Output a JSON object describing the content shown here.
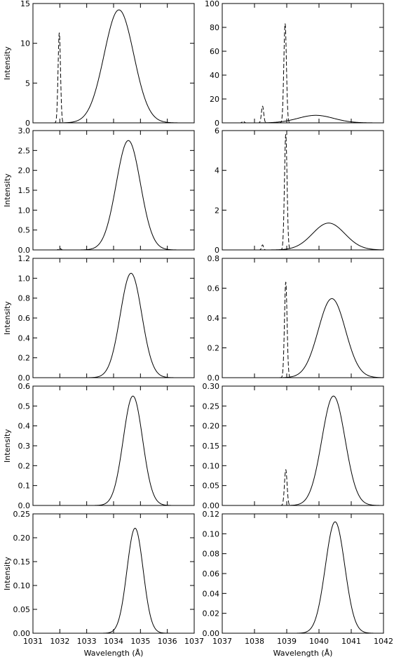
{
  "chart_data": [
    {
      "type": "line",
      "row": 0,
      "col": 0,
      "xlim": [
        1031,
        1037
      ],
      "ylim": [
        0,
        15
      ],
      "yticks": [
        0,
        5,
        10,
        15
      ],
      "yfmt": 0,
      "ylabel": "Intensity",
      "xlabel": "",
      "xtick_labels": false,
      "series": [
        {
          "style": "solid",
          "kind": "gaussian",
          "center": 1034.2,
          "amp": 14.2,
          "sigma": 0.55
        },
        {
          "style": "dashed",
          "kind": "gaussian",
          "center": 1031.98,
          "amp": 11.3,
          "sigma": 0.045
        }
      ]
    },
    {
      "type": "line",
      "row": 0,
      "col": 1,
      "xlim": [
        1037,
        1042
      ],
      "ylim": [
        0,
        100
      ],
      "yticks": [
        0,
        20,
        40,
        60,
        80,
        100
      ],
      "yfmt": 0,
      "ylabel": "",
      "xlabel": "",
      "xtick_labels": false,
      "series": [
        {
          "style": "solid",
          "kind": "gaussian",
          "center": 1039.9,
          "amp": 6.3,
          "sigma": 0.55
        },
        {
          "style": "dashed",
          "kind": "gaussian",
          "center": 1038.95,
          "amp": 83,
          "sigma": 0.04
        },
        {
          "style": "dashed",
          "kind": "gaussian",
          "center": 1038.25,
          "amp": 14,
          "sigma": 0.035
        },
        {
          "style": "dashed",
          "kind": "gaussian",
          "center": 1037.65,
          "amp": 1.5,
          "sigma": 0.03
        }
      ]
    },
    {
      "type": "line",
      "row": 1,
      "col": 0,
      "xlim": [
        1031,
        1037
      ],
      "ylim": [
        0,
        3.0
      ],
      "yticks": [
        0,
        0.5,
        1.0,
        1.5,
        2.0,
        2.5,
        3.0
      ],
      "yfmt": 1,
      "ylabel": "Intensity",
      "xlabel": "",
      "xtick_labels": false,
      "series": [
        {
          "style": "solid",
          "kind": "gaussian",
          "center": 1034.55,
          "amp": 2.75,
          "sigma": 0.45
        },
        {
          "style": "dashed",
          "kind": "gaussian",
          "center": 1032.0,
          "amp": 0.04,
          "sigma": 0.04
        }
      ]
    },
    {
      "type": "line",
      "row": 1,
      "col": 1,
      "xlim": [
        1037,
        1042
      ],
      "ylim": [
        0,
        6
      ],
      "yticks": [
        0,
        2,
        4,
        6
      ],
      "yfmt": 0,
      "ylabel": "",
      "xlabel": "",
      "xtick_labels": false,
      "series": [
        {
          "style": "solid",
          "kind": "gaussian",
          "center": 1040.3,
          "amp": 1.35,
          "sigma": 0.5
        },
        {
          "style": "dashed",
          "kind": "gaussian",
          "center": 1038.97,
          "amp": 5.8,
          "sigma": 0.04
        },
        {
          "style": "dashed",
          "kind": "gaussian",
          "center": 1038.25,
          "amp": 0.25,
          "sigma": 0.03
        }
      ]
    },
    {
      "type": "line",
      "row": 2,
      "col": 0,
      "xlim": [
        1031,
        1037
      ],
      "ylim": [
        0,
        1.2
      ],
      "yticks": [
        0,
        0.2,
        0.4,
        0.6,
        0.8,
        1.0,
        1.2
      ],
      "yfmt": 1,
      "ylabel": "Intensity",
      "xlabel": "",
      "xtick_labels": false,
      "series": [
        {
          "style": "solid",
          "kind": "gaussian",
          "center": 1034.65,
          "amp": 1.05,
          "sigma": 0.4
        }
      ]
    },
    {
      "type": "line",
      "row": 2,
      "col": 1,
      "xlim": [
        1037,
        1042
      ],
      "ylim": [
        0,
        0.8
      ],
      "yticks": [
        0,
        0.2,
        0.4,
        0.6,
        0.8
      ],
      "yfmt": 1,
      "ylabel": "",
      "xlabel": "",
      "xtick_labels": false,
      "series": [
        {
          "style": "solid",
          "kind": "gaussian",
          "center": 1040.4,
          "amp": 0.53,
          "sigma": 0.42
        },
        {
          "style": "dashed",
          "kind": "gaussian",
          "center": 1038.97,
          "amp": 0.64,
          "sigma": 0.04
        }
      ]
    },
    {
      "type": "line",
      "row": 3,
      "col": 0,
      "xlim": [
        1031,
        1037
      ],
      "ylim": [
        0,
        0.6
      ],
      "yticks": [
        0,
        0.1,
        0.2,
        0.3,
        0.4,
        0.5,
        0.6
      ],
      "yfmt": 1,
      "ylabel": "Intensity",
      "xlabel": "",
      "xtick_labels": false,
      "series": [
        {
          "style": "solid",
          "kind": "gaussian",
          "center": 1034.72,
          "amp": 0.55,
          "sigma": 0.36
        }
      ]
    },
    {
      "type": "line",
      "row": 3,
      "col": 1,
      "xlim": [
        1037,
        1042
      ],
      "ylim": [
        0,
        0.3
      ],
      "yticks": [
        0,
        0.05,
        0.1,
        0.15,
        0.2,
        0.25,
        0.3
      ],
      "yfmt": 2,
      "ylabel": "",
      "xlabel": "",
      "xtick_labels": false,
      "series": [
        {
          "style": "solid",
          "kind": "gaussian",
          "center": 1040.45,
          "amp": 0.275,
          "sigma": 0.36
        },
        {
          "style": "dashed",
          "kind": "gaussian",
          "center": 1038.97,
          "amp": 0.09,
          "sigma": 0.04
        }
      ]
    },
    {
      "type": "line",
      "row": 4,
      "col": 0,
      "xlim": [
        1031,
        1037
      ],
      "ylim": [
        0,
        0.25
      ],
      "yticks": [
        0,
        0.05,
        0.1,
        0.15,
        0.2,
        0.25
      ],
      "yfmt": 2,
      "ylabel": "Intensity",
      "xlabel": "Wavelength (Å)",
      "xtick_labels": true,
      "xticks": [
        1031,
        1032,
        1033,
        1034,
        1035,
        1036,
        1037
      ],
      "series": [
        {
          "style": "solid",
          "kind": "gaussian",
          "center": 1034.8,
          "amp": 0.22,
          "sigma": 0.3
        }
      ]
    },
    {
      "type": "line",
      "row": 4,
      "col": 1,
      "xlim": [
        1037,
        1042
      ],
      "ylim": [
        0,
        0.12
      ],
      "yticks": [
        0,
        0.02,
        0.04,
        0.06,
        0.08,
        0.1,
        0.12
      ],
      "yfmt": 2,
      "ylabel": "",
      "xlabel": "Wavelength (Å)",
      "xtick_labels": true,
      "xticks": [
        1037,
        1038,
        1039,
        1040,
        1041,
        1042
      ],
      "series": [
        {
          "style": "solid",
          "kind": "gaussian",
          "center": 1040.5,
          "amp": 0.112,
          "sigma": 0.3
        }
      ]
    }
  ]
}
